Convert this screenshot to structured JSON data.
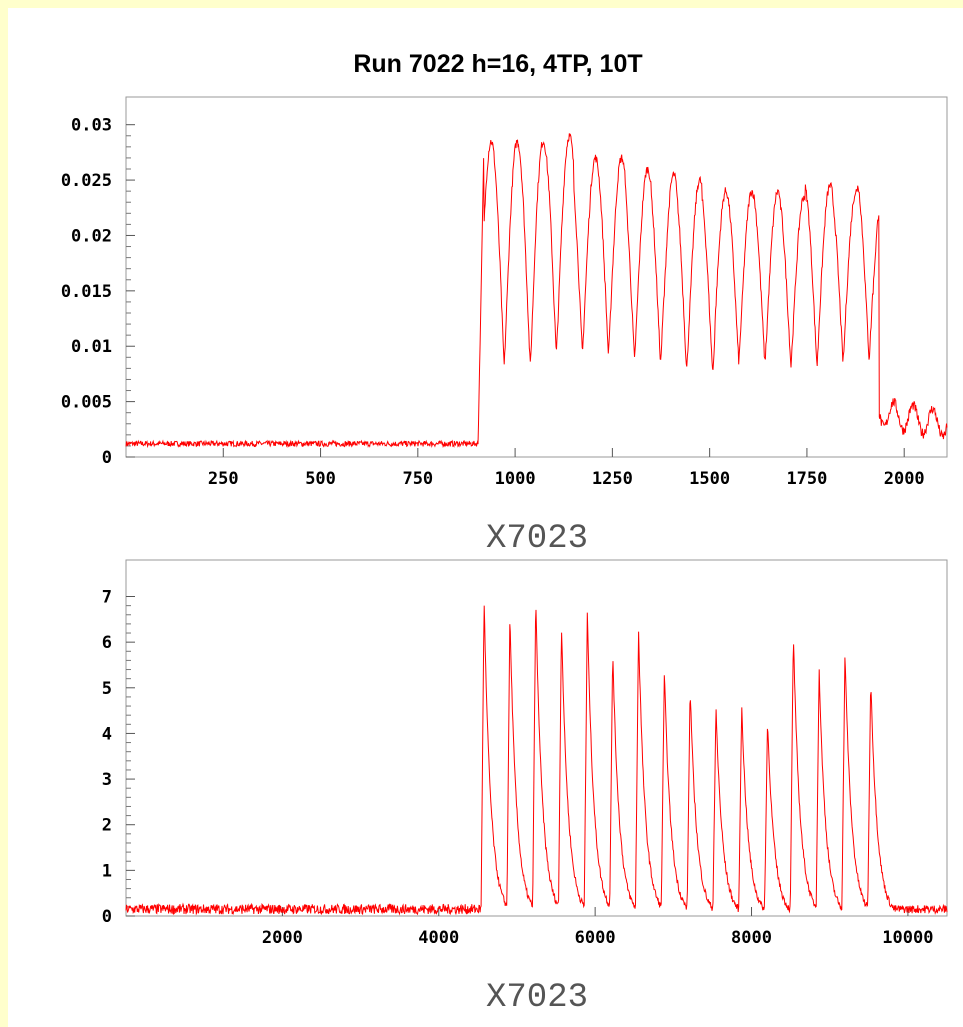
{
  "title": "Run 7022  h=16, 4TP, 10T",
  "colors": {
    "trace": "#ff0000",
    "frame": "#ffffcc",
    "axis": "#555555"
  },
  "chart_data": [
    {
      "type": "line",
      "xlabel": "X7023",
      "ylabel": "",
      "xlim": [
        0,
        2110
      ],
      "ylim": [
        0,
        0.0325
      ],
      "xticks": [
        250,
        500,
        750,
        1000,
        1250,
        1500,
        1750,
        2000
      ],
      "yticks": [
        0,
        0.005,
        0.01,
        0.015,
        0.02,
        0.025,
        0.03
      ],
      "ytick_labels": [
        "0",
        "0.005",
        "0.01",
        "0.015",
        "0.02",
        "0.025",
        "0.03"
      ],
      "baseline": 0.0012,
      "signal_start": 905,
      "signal_end": 1935,
      "tail_level": 0.004,
      "peaks": [
        {
          "x": 945,
          "y": 0.0285
        },
        {
          "x": 1015,
          "y": 0.0285
        },
        {
          "x": 1085,
          "y": 0.029
        },
        {
          "x": 1150,
          "y": 0.027
        },
        {
          "x": 1220,
          "y": 0.027
        },
        {
          "x": 1285,
          "y": 0.026
        },
        {
          "x": 1350,
          "y": 0.0255
        },
        {
          "x": 1415,
          "y": 0.025
        },
        {
          "x": 1480,
          "y": 0.024
        },
        {
          "x": 1545,
          "y": 0.024
        },
        {
          "x": 1610,
          "y": 0.024
        },
        {
          "x": 1680,
          "y": 0.0235
        },
        {
          "x": 1745,
          "y": 0.0245
        },
        {
          "x": 1815,
          "y": 0.024
        },
        {
          "x": 1880,
          "y": 0.025
        },
        {
          "x": 1920,
          "y": 0.0235
        }
      ],
      "troughs": [
        {
          "x": 980,
          "y": 0.0082
        },
        {
          "x": 1050,
          "y": 0.0092
        },
        {
          "x": 1118,
          "y": 0.0093
        },
        {
          "x": 1185,
          "y": 0.0092
        },
        {
          "x": 1253,
          "y": 0.0087
        },
        {
          "x": 1318,
          "y": 0.0085
        },
        {
          "x": 1383,
          "y": 0.0078
        },
        {
          "x": 1448,
          "y": 0.0075
        },
        {
          "x": 1513,
          "y": 0.0085
        },
        {
          "x": 1578,
          "y": 0.0085
        },
        {
          "x": 1645,
          "y": 0.0082
        },
        {
          "x": 1712,
          "y": 0.0082
        },
        {
          "x": 1780,
          "y": 0.0085
        },
        {
          "x": 1848,
          "y": 0.0088
        }
      ]
    },
    {
      "type": "line",
      "xlabel": "X7023",
      "ylabel": "",
      "xlim": [
        0,
        10500
      ],
      "ylim": [
        0,
        7.8
      ],
      "xticks": [
        2000,
        4000,
        6000,
        8000,
        10000
      ],
      "yticks": [
        0,
        1,
        2,
        3,
        4,
        5,
        6,
        7
      ],
      "ytick_labels": [
        "0",
        "1",
        "2",
        "3",
        "4",
        "5",
        "6",
        "7"
      ],
      "baseline": 0.15,
      "signal_start": 4540,
      "signal_end": 9500,
      "peaks": [
        {
          "x": 4580,
          "y": 6.9
        },
        {
          "x": 4910,
          "y": 6.6
        },
        {
          "x": 5240,
          "y": 7.0
        },
        {
          "x": 5570,
          "y": 6.4
        },
        {
          "x": 5900,
          "y": 6.7
        },
        {
          "x": 6225,
          "y": 5.8
        },
        {
          "x": 6555,
          "y": 6.3
        },
        {
          "x": 6885,
          "y": 5.4
        },
        {
          "x": 7215,
          "y": 5.0
        },
        {
          "x": 7545,
          "y": 4.6
        },
        {
          "x": 7875,
          "y": 4.6
        },
        {
          "x": 8205,
          "y": 4.3
        },
        {
          "x": 8535,
          "y": 6.2
        },
        {
          "x": 8865,
          "y": 5.4
        },
        {
          "x": 9195,
          "y": 5.8
        },
        {
          "x": 9525,
          "y": 5.2
        }
      ]
    }
  ]
}
